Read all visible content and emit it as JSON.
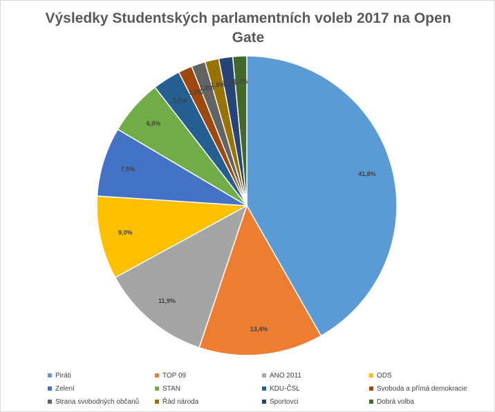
{
  "chart_data": {
    "type": "pie",
    "title": "Výsledky Studentských parlamentních voleb 2017 na Open Gate",
    "legend_position": "bottom",
    "slices": [
      {
        "name": "Piráti",
        "value": 41.8,
        "label": "41,8%",
        "color": "#5b9bd5"
      },
      {
        "name": "TOP 09",
        "value": 13.4,
        "label": "13,4%",
        "color": "#ed7d31"
      },
      {
        "name": "ANO 2011",
        "value": 11.9,
        "label": "11,9%",
        "color": "#a5a5a5"
      },
      {
        "name": "ODS",
        "value": 9.0,
        "label": "9,0%",
        "color": "#ffc000"
      },
      {
        "name": "Zelení",
        "value": 7.5,
        "label": "7,5%",
        "color": "#4472c4"
      },
      {
        "name": "STAN",
        "value": 6.0,
        "label": "6,0%",
        "color": "#70ad47"
      },
      {
        "name": "KDU-ČSL",
        "value": 3.0,
        "label": "3,0%",
        "color": "#255e91"
      },
      {
        "name": "Svoboda a přímá demokracie",
        "value": 1.5,
        "label": "1,5%",
        "color": "#9e480e"
      },
      {
        "name": "Strana svobodných občanů",
        "value": 1.5,
        "label": "1,5%",
        "color": "#636363"
      },
      {
        "name": "Řád národa",
        "value": 1.5,
        "label": "1,5%",
        "color": "#997300"
      },
      {
        "name": "Sportovci",
        "value": 1.5,
        "label": "1,5%",
        "color": "#264478"
      },
      {
        "name": "Dobrá volba",
        "value": 1.5,
        "label": "1,5%",
        "color": "#43682b"
      }
    ]
  }
}
